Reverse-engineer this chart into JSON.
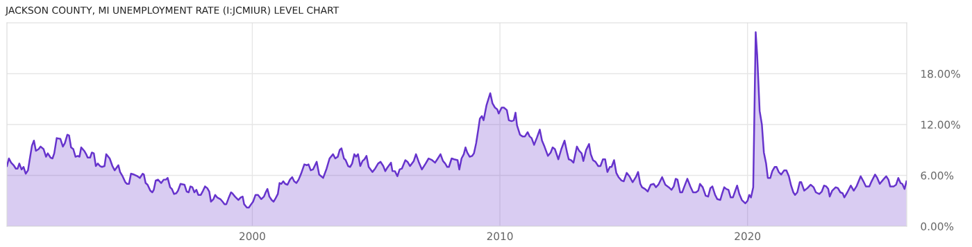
{
  "chart_data": {
    "type": "area",
    "title": "JACKSON COUNTY, MI UNEMPLOYMENT RATE (I:JCMIUR) LEVEL CHART",
    "xlim": [
      1990.09,
      2026.43
    ],
    "xticks": [
      2000,
      2010,
      2020
    ],
    "ylim": [
      0,
      24
    ],
    "yticks": [
      {
        "value": 0,
        "label": "0.00%"
      },
      {
        "value": 6,
        "label": "6.00%"
      },
      {
        "value": 12,
        "label": "12.00%"
      },
      {
        "value": 18,
        "label": "18.00%"
      }
    ],
    "grid": true,
    "legend": false,
    "series": [
      {
        "color": "#6633cc",
        "x": [
          1990.09,
          1990.17,
          1990.26,
          1990.36,
          1990.45,
          1990.52,
          1990.59,
          1990.68,
          1990.76,
          1990.85,
          1990.94,
          1991.01,
          1991.1,
          1991.18,
          1991.26,
          1991.37,
          1991.45,
          1991.57,
          1991.67,
          1991.74,
          1991.85,
          1991.93,
          1992.0,
          1992.1,
          1992.25,
          1992.35,
          1992.43,
          1992.53,
          1992.6,
          1992.68,
          1992.77,
          1992.86,
          1992.95,
          1993.02,
          1993.09,
          1993.21,
          1993.29,
          1993.35,
          1993.45,
          1993.52,
          1993.6,
          1993.68,
          1993.76,
          1993.85,
          1993.93,
          1994.03,
          1994.1,
          1994.24,
          1994.35,
          1994.44,
          1994.59,
          1994.66,
          1994.76,
          1994.87,
          1994.94,
          1995.02,
          1995.1,
          1995.22,
          1995.36,
          1995.46,
          1995.57,
          1995.62,
          1995.69,
          1995.77,
          1995.88,
          1995.96,
          1996.02,
          1996.1,
          1996.19,
          1996.32,
          1996.42,
          1996.51,
          1996.58,
          1996.68,
          1996.75,
          1996.84,
          1996.93,
          1997.0,
          1997.1,
          1997.26,
          1997.35,
          1997.43,
          1997.5,
          1997.58,
          1997.66,
          1997.74,
          1997.82,
          1997.92,
          1998.01,
          1998.09,
          1998.18,
          1998.26,
          1998.33,
          1998.43,
          1998.5,
          1998.58,
          1998.71,
          1998.8,
          1998.88,
          1998.95,
          1999.04,
          1999.14,
          1999.19,
          1999.3,
          1999.44,
          1999.53,
          1999.61,
          1999.67,
          1999.78,
          1999.86,
          1999.93,
          2000.03,
          2000.13,
          2000.23,
          2000.36,
          2000.47,
          2000.54,
          2000.61,
          2000.69,
          2000.78,
          2000.86,
          2000.94,
          2001.03,
          2001.1,
          2001.17,
          2001.25,
          2001.33,
          2001.42,
          2001.52,
          2001.61,
          2001.69,
          2001.78,
          2001.87,
          2001.97,
          2002.1,
          2002.2,
          2002.27,
          2002.36,
          2002.45,
          2002.6,
          2002.7,
          2002.86,
          2003.0,
          2003.12,
          2003.26,
          2003.35,
          2003.45,
          2003.53,
          2003.6,
          2003.7,
          2003.77,
          2003.87,
          2003.95,
          2004.03,
          2004.12,
          2004.19,
          2004.27,
          2004.36,
          2004.45,
          2004.53,
          2004.61,
          2004.7,
          2004.85,
          2004.96,
          2005.08,
          2005.18,
          2005.29,
          2005.37,
          2005.45,
          2005.6,
          2005.66,
          2005.76,
          2005.86,
          2005.95,
          2006.04,
          2006.18,
          2006.27,
          2006.37,
          2006.52,
          2006.61,
          2006.72,
          2006.85,
          2007.0,
          2007.12,
          2007.26,
          2007.38,
          2007.47,
          2007.6,
          2007.7,
          2007.79,
          2007.87,
          2007.94,
          2008.05,
          2008.15,
          2008.29,
          2008.36,
          2008.45,
          2008.54,
          2008.61,
          2008.68,
          2008.78,
          2008.88,
          2008.95,
          2009.04,
          2009.13,
          2009.19,
          2009.27,
          2009.34,
          2009.46,
          2009.61,
          2009.7,
          2009.8,
          2009.89,
          2009.95,
          2010.07,
          2010.16,
          2010.28,
          2010.36,
          2010.47,
          2010.56,
          2010.63,
          2010.69,
          2010.81,
          2010.91,
          2011.01,
          2011.12,
          2011.2,
          2011.28,
          2011.38,
          2011.5,
          2011.61,
          2011.7,
          2011.8,
          2011.94,
          2012.05,
          2012.13,
          2012.22,
          2012.36,
          2012.48,
          2012.61,
          2012.72,
          2012.78,
          2012.87,
          2012.97,
          2013.11,
          2013.2,
          2013.3,
          2013.37,
          2013.48,
          2013.6,
          2013.67,
          2013.76,
          2013.86,
          2013.97,
          2014.06,
          2014.16,
          2014.25,
          2014.34,
          2014.44,
          2014.51,
          2014.61,
          2014.7,
          2014.79,
          2014.91,
          2015.0,
          2015.12,
          2015.23,
          2015.36,
          2015.49,
          2015.58,
          2015.67,
          2015.74,
          2015.86,
          2015.97,
          2016.09,
          2016.21,
          2016.3,
          2016.4,
          2016.55,
          2016.68,
          2016.82,
          2016.93,
          2017.02,
          2017.1,
          2017.17,
          2017.28,
          2017.36,
          2017.45,
          2017.57,
          2017.69,
          2017.8,
          2017.92,
          2018.01,
          2018.08,
          2018.19,
          2018.31,
          2018.41,
          2018.5,
          2018.58,
          2018.69,
          2018.78,
          2018.9,
          2018.97,
          2019.06,
          2019.14,
          2019.23,
          2019.32,
          2019.41,
          2019.58,
          2019.67,
          2019.77,
          2019.91,
          2020.0,
          2020.07,
          2020.14,
          2020.23,
          2020.33,
          2020.39,
          2020.49,
          2020.58,
          2020.66,
          2020.75,
          2020.82,
          2020.92,
          2021.0,
          2021.1,
          2021.17,
          2021.26,
          2021.36,
          2021.48,
          2021.57,
          2021.67,
          2021.76,
          2021.85,
          2021.92,
          2022.01,
          2022.11,
          2022.17,
          2022.29,
          2022.42,
          2022.55,
          2022.67,
          2022.76,
          2022.9,
          2023.0,
          2023.09,
          2023.18,
          2023.26,
          2023.32,
          2023.42,
          2023.56,
          2023.65,
          2023.75,
          2023.84,
          2023.91,
          2024.03,
          2024.17,
          2024.29,
          2024.4,
          2024.57,
          2024.68,
          2024.78,
          2024.92,
          2025.01,
          2025.15,
          2025.24,
          2025.34,
          2025.48,
          2025.6,
          2025.69,
          2025.76,
          2025.9,
          2026.0,
          2026.09,
          2026.18,
          2026.25,
          2026.34,
          2026.42
        ],
        "values": [
          7.1,
          8.0,
          7.5,
          7.2,
          6.8,
          6.8,
          7.4,
          6.7,
          7.0,
          6.2,
          6.6,
          7.9,
          9.5,
          10.1,
          8.9,
          9.1,
          9.4,
          9.1,
          8.2,
          8.6,
          8.1,
          8.0,
          8.6,
          10.4,
          10.3,
          9.4,
          9.8,
          10.8,
          10.7,
          9.3,
          9.1,
          8.2,
          8.3,
          8.2,
          9.3,
          8.9,
          8.5,
          8.1,
          8.1,
          8.7,
          8.6,
          7.1,
          7.4,
          7.1,
          7.0,
          7.1,
          8.5,
          8.0,
          7.1,
          6.6,
          7.2,
          6.4,
          5.9,
          5.2,
          5.0,
          5.0,
          6.2,
          6.1,
          5.9,
          5.7,
          6.2,
          6.1,
          5.1,
          4.9,
          4.2,
          4.0,
          4.3,
          5.4,
          5.5,
          5.1,
          5.5,
          5.5,
          5.7,
          4.6,
          4.4,
          3.8,
          3.9,
          4.2,
          5.0,
          4.9,
          4.1,
          4.0,
          4.7,
          4.6,
          4.0,
          4.3,
          3.7,
          3.7,
          4.2,
          4.7,
          4.5,
          4.1,
          2.9,
          3.2,
          3.7,
          3.4,
          3.2,
          2.9,
          2.6,
          2.6,
          3.3,
          4.0,
          3.9,
          3.5,
          3.1,
          3.4,
          3.5,
          2.6,
          2.2,
          2.2,
          2.5,
          2.9,
          3.7,
          3.7,
          3.2,
          3.5,
          4.0,
          4.4,
          3.5,
          3.1,
          2.9,
          3.3,
          3.8,
          5.1,
          5.0,
          5.3,
          5.0,
          4.9,
          5.5,
          5.8,
          5.3,
          5.1,
          5.5,
          6.2,
          7.3,
          7.2,
          7.3,
          6.6,
          6.7,
          7.6,
          6.1,
          5.7,
          6.8,
          8.0,
          8.5,
          8.0,
          8.2,
          9.0,
          9.2,
          8.0,
          7.8,
          7.1,
          7.0,
          7.4,
          8.5,
          8.2,
          8.5,
          7.1,
          7.7,
          7.9,
          8.3,
          7.0,
          6.4,
          6.8,
          7.4,
          7.6,
          7.1,
          6.5,
          6.9,
          7.5,
          6.5,
          6.5,
          5.9,
          6.7,
          6.8,
          7.8,
          7.6,
          7.1,
          7.7,
          8.5,
          7.6,
          6.7,
          7.4,
          8.0,
          7.8,
          7.5,
          7.9,
          8.5,
          7.7,
          7.4,
          7.0,
          7.0,
          8.0,
          7.9,
          7.8,
          6.7,
          8.0,
          8.5,
          9.3,
          8.7,
          8.2,
          8.3,
          8.6,
          9.8,
          11.5,
          12.7,
          13.0,
          12.5,
          14.3,
          15.7,
          14.5,
          14.0,
          13.8,
          13.3,
          14.0,
          14.0,
          13.7,
          12.5,
          12.4,
          12.5,
          13.4,
          11.9,
          10.8,
          10.6,
          10.6,
          11.1,
          10.6,
          10.4,
          9.6,
          10.5,
          11.4,
          10.1,
          9.4,
          8.3,
          8.7,
          9.3,
          9.1,
          7.9,
          9.1,
          10.1,
          8.6,
          7.9,
          7.8,
          7.5,
          9.4,
          8.9,
          8.6,
          7.7,
          9.0,
          9.7,
          8.5,
          7.8,
          7.6,
          7.1,
          7.1,
          7.9,
          7.9,
          6.4,
          7.0,
          7.0,
          7.8,
          6.3,
          5.8,
          5.4,
          5.3,
          6.3,
          5.9,
          5.2,
          5.8,
          6.4,
          5.0,
          4.6,
          4.4,
          4.1,
          4.9,
          5.0,
          4.6,
          4.9,
          5.8,
          4.9,
          4.6,
          4.3,
          4.7,
          5.6,
          5.5,
          4.0,
          4.0,
          4.7,
          5.6,
          4.7,
          4.0,
          4.0,
          4.2,
          5.0,
          4.6,
          3.6,
          3.5,
          4.5,
          4.7,
          3.7,
          3.2,
          3.1,
          3.8,
          4.6,
          4.4,
          4.3,
          3.4,
          3.4,
          4.8,
          3.8,
          3.1,
          2.7,
          3.0,
          3.7,
          3.4,
          4.6,
          22.9,
          20.2,
          13.6,
          12.0,
          8.7,
          7.4,
          5.7,
          5.7,
          6.5,
          7.0,
          7.0,
          6.4,
          6.1,
          6.6,
          6.6,
          5.9,
          4.8,
          4.0,
          3.7,
          4.0,
          5.2,
          5.2,
          4.2,
          4.5,
          4.9,
          4.6,
          4.0,
          3.8,
          4.1,
          4.8,
          4.7,
          4.4,
          3.5,
          4.2,
          4.6,
          4.5,
          4.0,
          3.9,
          3.4,
          4.0,
          4.8,
          4.2,
          4.7,
          5.9,
          5.3,
          4.7,
          4.7,
          5.3,
          6.1,
          5.7,
          5.0,
          5.5,
          5.9,
          5.5,
          4.7,
          4.7,
          4.9,
          5.7,
          5.1,
          5.0,
          4.4,
          5.3
        ]
      }
    ]
  }
}
